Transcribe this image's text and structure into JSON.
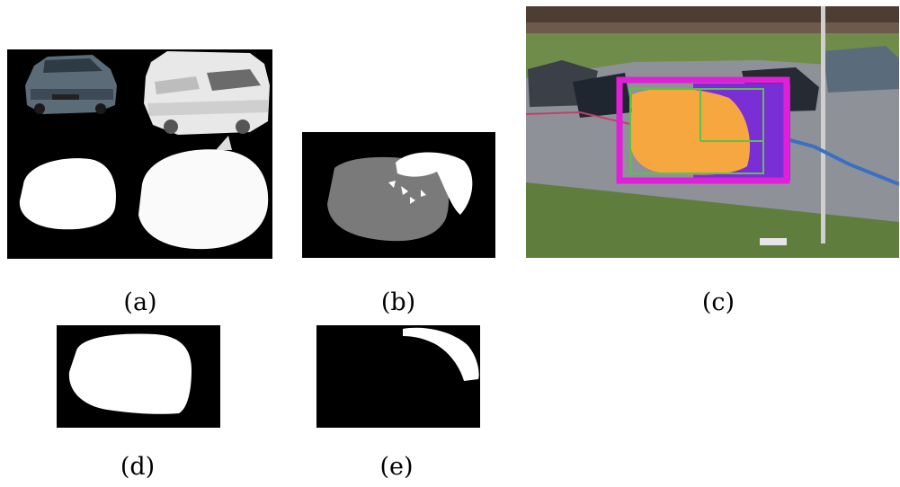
{
  "figure": {
    "captions": {
      "a": "(a)",
      "b": "(b)",
      "c": "(c)",
      "d": "(d)",
      "e": "(e)"
    },
    "colors": {
      "background": "#000000",
      "foreground": "#ffffff",
      "gray_region": "#7a7a7a",
      "orange_region": "#f7a740",
      "purple_region": "#7a2fd6",
      "magenta_box": "#e020d8",
      "green_box": "#5fc04a",
      "blue_track": "#3b6fc4"
    }
  }
}
